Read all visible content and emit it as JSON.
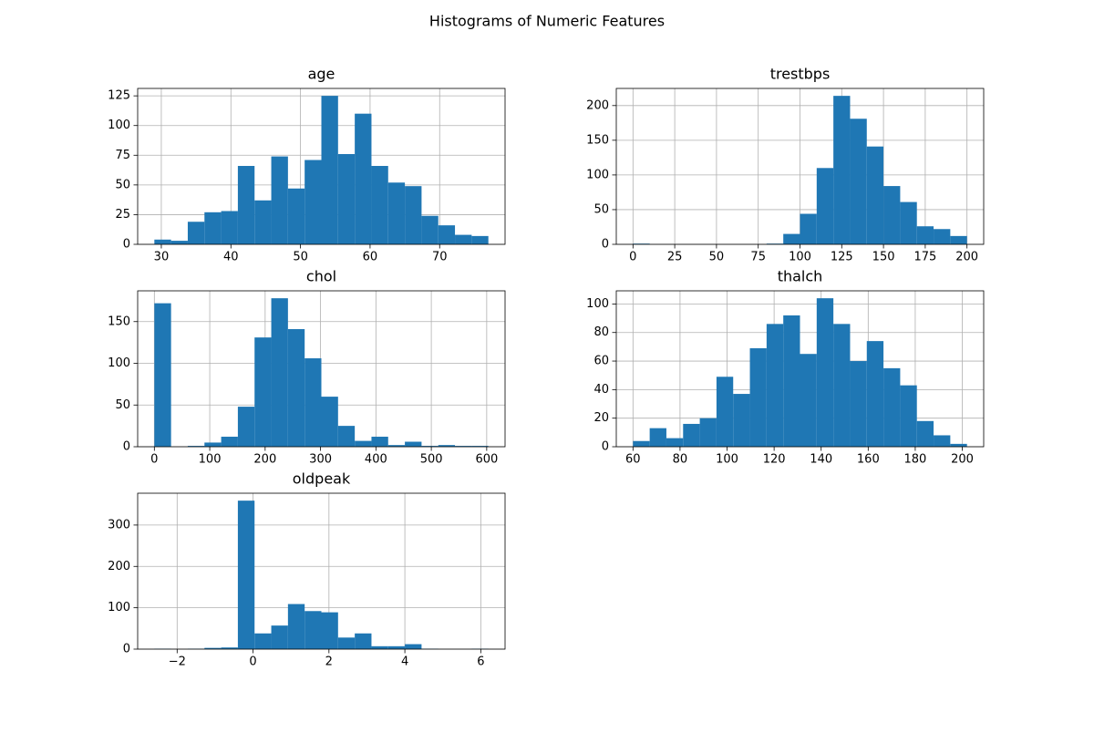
{
  "title": "Histograms of Numeric Features",
  "chart_data": [
    {
      "type": "histogram",
      "title": "age",
      "color": "#1f77b4",
      "grid": true,
      "bins": [
        29,
        31.4,
        33.8,
        36.2,
        38.6,
        41,
        43.4,
        45.8,
        48.2,
        50.6,
        53,
        55.4,
        57.8,
        60.2,
        62.6,
        65,
        67.4,
        69.8,
        72.2,
        74.6,
        77
      ],
      "values": [
        4,
        3,
        19,
        27,
        28,
        66,
        37,
        74,
        47,
        71,
        125,
        76,
        110,
        66,
        52,
        49,
        24,
        16,
        8,
        7
      ],
      "xlim": [
        26.6,
        79.4
      ],
      "ylim": [
        0,
        131.25
      ],
      "xticks": [
        30,
        40,
        50,
        60,
        70
      ],
      "yticks": [
        0,
        25,
        50,
        75,
        100,
        125
      ]
    },
    {
      "type": "histogram",
      "title": "trestbps",
      "color": "#1f77b4",
      "grid": true,
      "bins": [
        0,
        10,
        20,
        30,
        40,
        50,
        60,
        70,
        80,
        90,
        100,
        110,
        120,
        130,
        140,
        150,
        160,
        170,
        180,
        190,
        200
      ],
      "values": [
        1,
        0,
        0,
        0,
        0,
        0,
        0,
        0,
        1,
        15,
        44,
        110,
        214,
        181,
        141,
        84,
        61,
        26,
        22,
        12
      ],
      "xlim": [
        -10,
        210
      ],
      "ylim": [
        0,
        224.7
      ],
      "xticks": [
        0,
        25,
        50,
        75,
        100,
        125,
        150,
        175,
        200
      ],
      "yticks": [
        0,
        50,
        100,
        150,
        200
      ]
    },
    {
      "type": "histogram",
      "title": "chol",
      "color": "#1f77b4",
      "grid": true,
      "bins": [
        0,
        30.15,
        60.3,
        90.45,
        120.6,
        150.75,
        180.9,
        211.05,
        241.2,
        271.35,
        301.5,
        331.65,
        361.8,
        391.95,
        422.1,
        452.25,
        482.4,
        512.55,
        542.7,
        572.85,
        603
      ],
      "values": [
        172,
        0,
        1,
        5,
        12,
        48,
        131,
        178,
        141,
        106,
        60,
        25,
        7,
        12,
        2,
        6,
        1,
        2,
        1,
        1
      ],
      "xlim": [
        -30.15,
        633.15
      ],
      "ylim": [
        0,
        186.9
      ],
      "xticks": [
        0,
        100,
        200,
        300,
        400,
        500,
        600
      ],
      "yticks": [
        0,
        50,
        100,
        150
      ]
    },
    {
      "type": "histogram",
      "title": "thalch",
      "color": "#1f77b4",
      "grid": true,
      "bins": [
        60,
        67.1,
        74.2,
        81.3,
        88.4,
        95.5,
        102.6,
        109.7,
        116.8,
        123.9,
        131,
        138.1,
        145.2,
        152.3,
        159.4,
        166.5,
        173.6,
        180.7,
        187.8,
        194.9,
        202
      ],
      "values": [
        4,
        13,
        6,
        16,
        20,
        49,
        37,
        69,
        86,
        92,
        65,
        104,
        86,
        60,
        74,
        55,
        43,
        18,
        8,
        2
      ],
      "xlim": [
        52.9,
        209.1
      ],
      "ylim": [
        0,
        109.2
      ],
      "xticks": [
        60,
        80,
        100,
        120,
        140,
        160,
        180,
        200
      ],
      "yticks": [
        0,
        20,
        40,
        60,
        80,
        100
      ]
    },
    {
      "type": "histogram",
      "title": "oldpeak",
      "color": "#1f77b4",
      "grid": true,
      "bins": [
        -2.6,
        -2.16,
        -1.72,
        -1.28,
        -0.84,
        -0.4,
        0.04,
        0.48,
        0.92,
        1.36,
        1.8,
        2.24,
        2.68,
        3.12,
        3.56,
        4,
        4.44,
        4.88,
        5.32,
        5.76,
        6.2
      ],
      "values": [
        1,
        0,
        1,
        3,
        4,
        359,
        38,
        57,
        109,
        92,
        89,
        28,
        38,
        7,
        7,
        12,
        1,
        0,
        0,
        1
      ],
      "xlim": [
        -3.04,
        6.64
      ],
      "ylim": [
        0,
        376.95
      ],
      "xticks": [
        {
          "value": -2,
          "label": "−2"
        },
        0,
        2,
        4,
        6
      ],
      "yticks": [
        0,
        100,
        200,
        300
      ]
    }
  ]
}
